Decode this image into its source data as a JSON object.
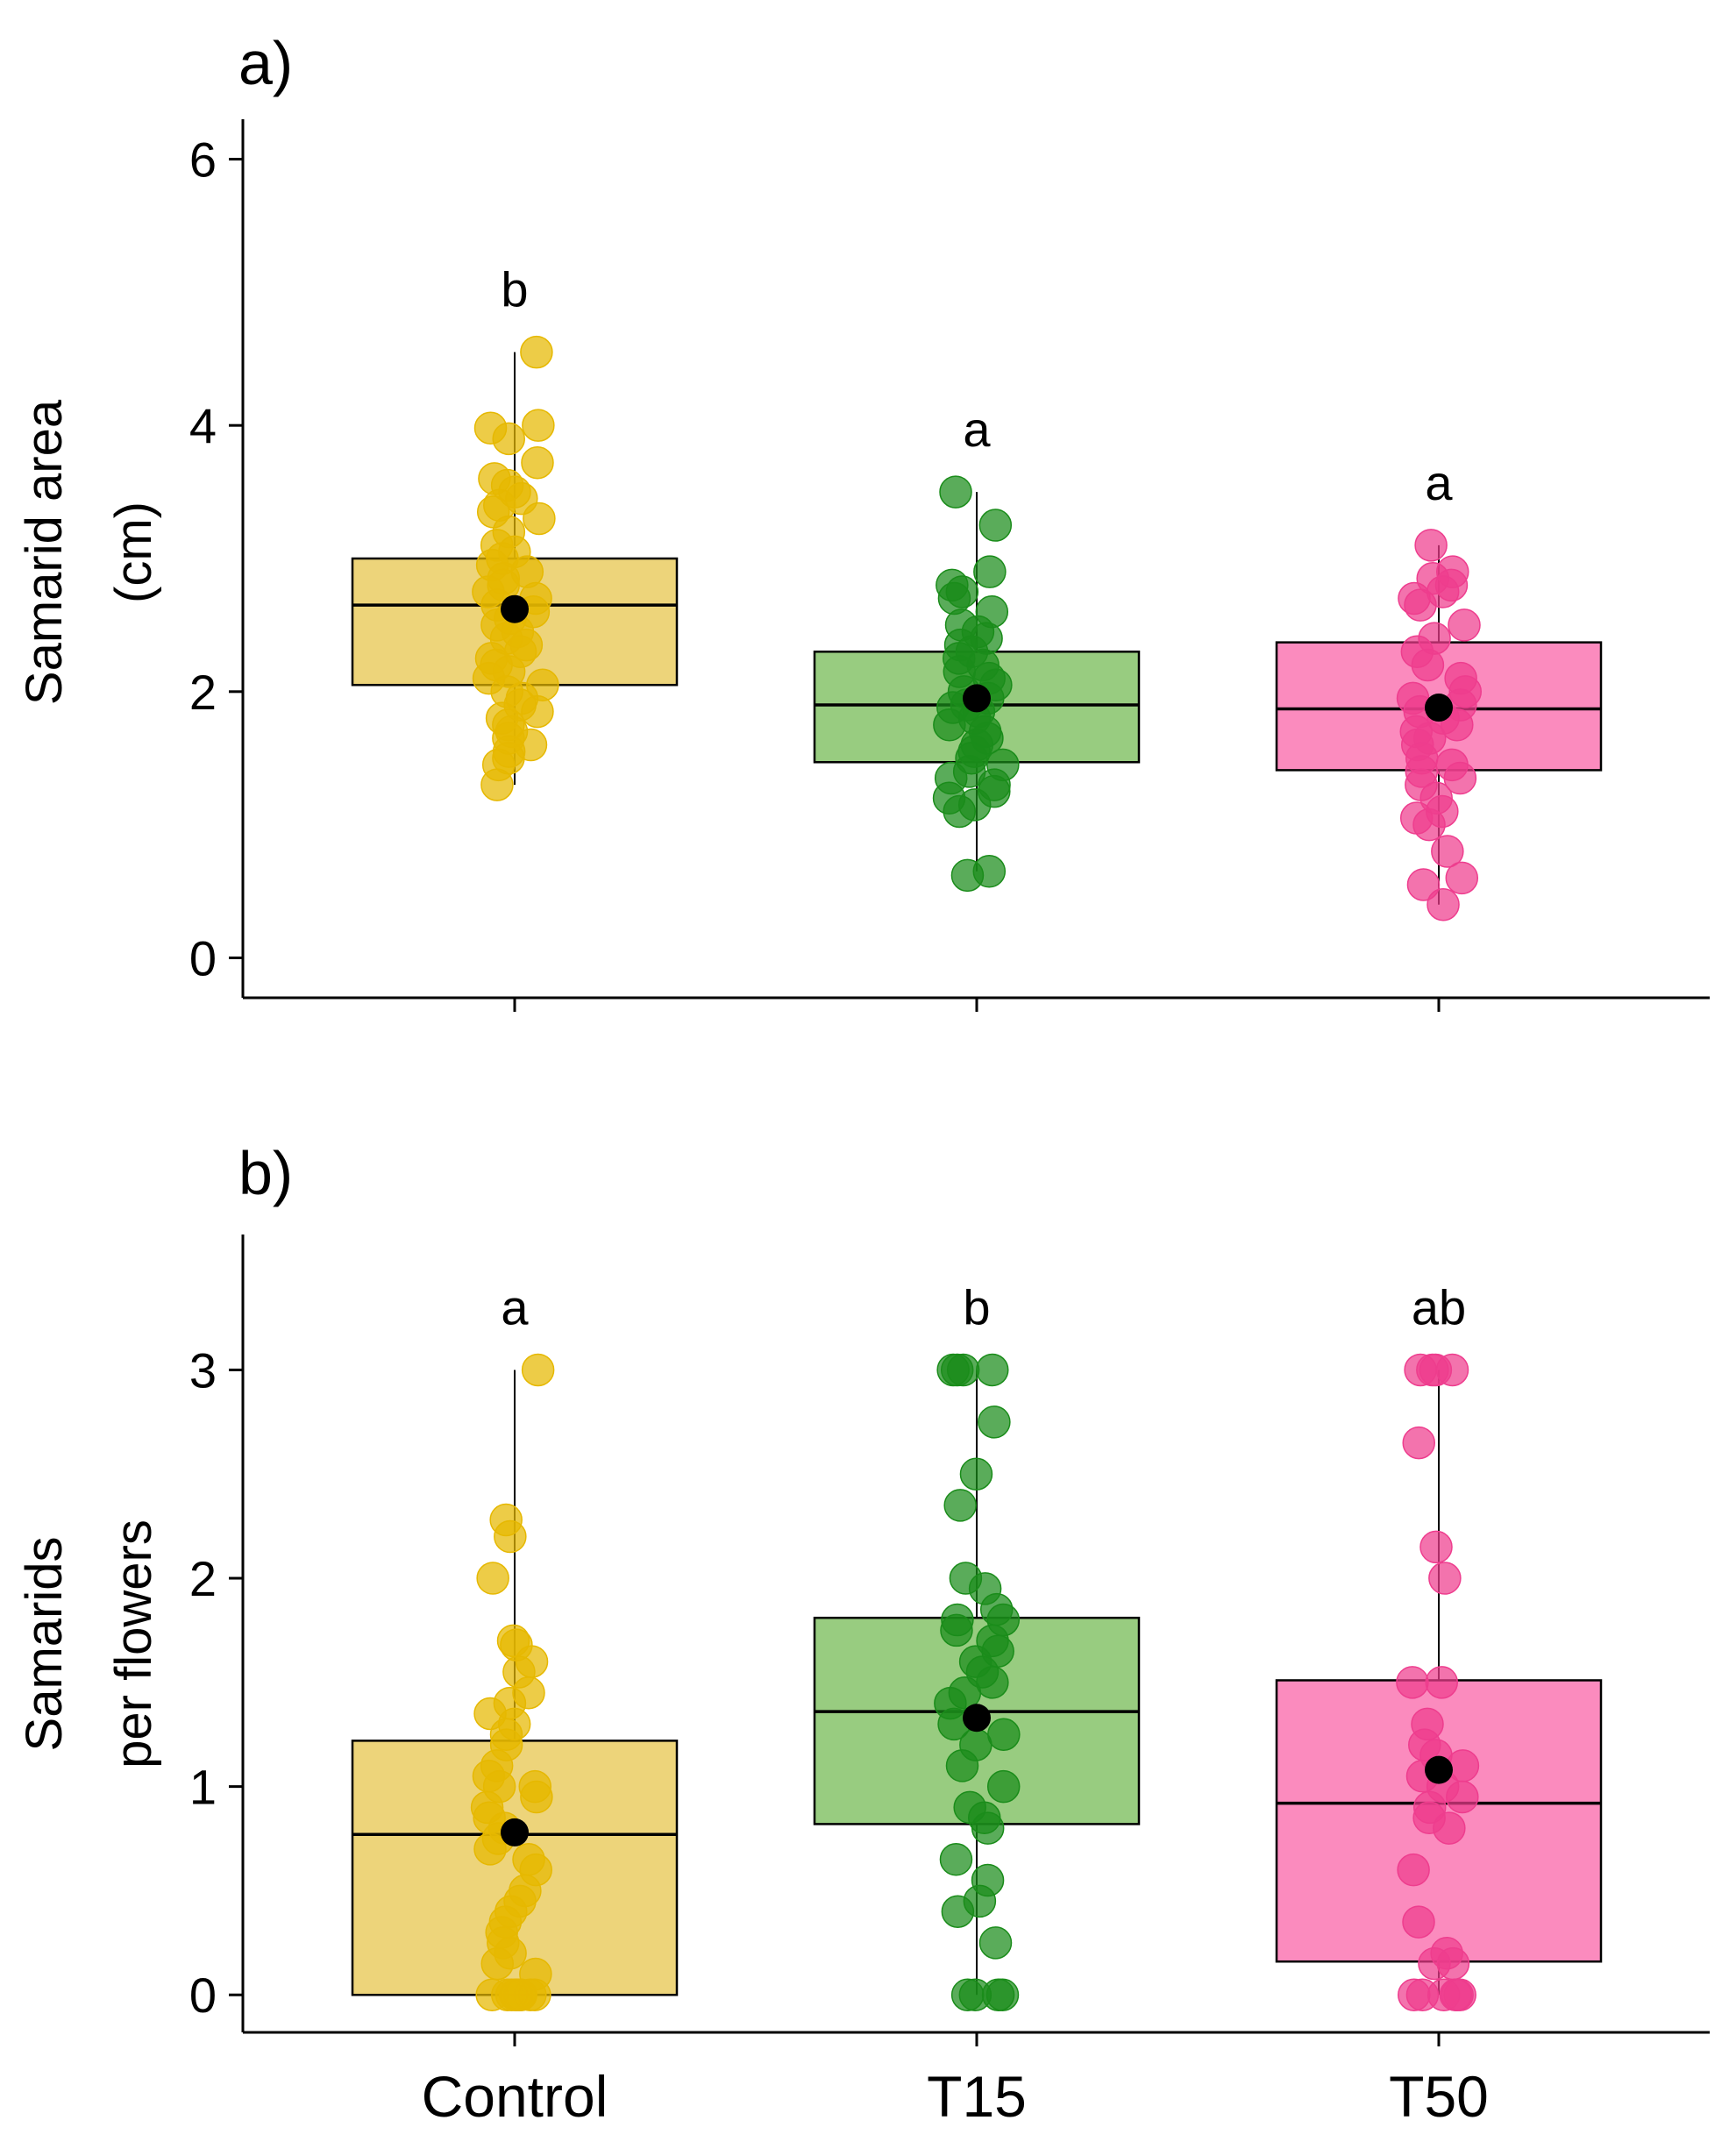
{
  "chart_data": [
    {
      "type": "box",
      "panel_label": "a)",
      "ylabel_lines": [
        "Samarid area",
        "(cm)"
      ],
      "categories": [
        "Control",
        "T15",
        "T50"
      ],
      "yticks": [
        "0",
        "2",
        "4",
        "6"
      ],
      "ylim": [
        -0.3,
        6.3
      ],
      "show_xticklabels": false,
      "groups": [
        {
          "name": "Control",
          "color": "#E6B800",
          "fill": "#EDD47A",
          "q1": 2.05,
          "median": 2.65,
          "q3": 3.0,
          "whisker_low": 1.3,
          "whisker_high": 4.55,
          "mean": 2.62,
          "letter": "b",
          "points": [
            4.55,
            4.0,
            3.98,
            3.9,
            3.72,
            3.6,
            3.55,
            3.5,
            3.45,
            3.4,
            3.35,
            3.3,
            3.2,
            3.1,
            3.05,
            3.0,
            2.95,
            2.9,
            2.85,
            2.8,
            2.75,
            2.7,
            2.65,
            2.6,
            2.55,
            2.5,
            2.45,
            2.4,
            2.35,
            2.3,
            2.25,
            2.2,
            2.15,
            2.1,
            2.05,
            2.0,
            1.95,
            1.9,
            1.85,
            1.8,
            1.75,
            1.7,
            1.65,
            1.6,
            1.55,
            1.5,
            1.45,
            1.3
          ]
        },
        {
          "name": "T15",
          "color": "#1A8C1A",
          "fill": "#98CC80",
          "q1": 1.47,
          "median": 1.9,
          "q3": 2.3,
          "whisker_low": 0.65,
          "whisker_high": 3.5,
          "mean": 1.95,
          "letter": "a",
          "points": [
            3.5,
            3.25,
            2.9,
            2.8,
            2.75,
            2.7,
            2.6,
            2.5,
            2.45,
            2.4,
            2.35,
            2.3,
            2.25,
            2.2,
            2.15,
            2.1,
            2.05,
            2.0,
            1.95,
            1.9,
            1.88,
            1.85,
            1.8,
            1.75,
            1.7,
            1.65,
            1.6,
            1.55,
            1.5,
            1.45,
            1.4,
            1.35,
            1.3,
            1.25,
            1.2,
            1.15,
            1.1,
            0.65,
            0.62
          ]
        },
        {
          "name": "T50",
          "color": "#EE3D8E",
          "fill": "#FB8BBE",
          "q1": 1.41,
          "median": 1.87,
          "q3": 2.37,
          "whisker_low": 0.4,
          "whisker_high": 3.1,
          "mean": 1.88,
          "letter": "a",
          "points": [
            3.1,
            2.9,
            2.85,
            2.8,
            2.75,
            2.7,
            2.65,
            2.5,
            2.4,
            2.3,
            2.2,
            2.1,
            2.0,
            1.95,
            1.9,
            1.85,
            1.8,
            1.75,
            1.7,
            1.65,
            1.6,
            1.5,
            1.45,
            1.4,
            1.35,
            1.3,
            1.2,
            1.1,
            1.05,
            1.0,
            0.8,
            0.6,
            0.55,
            0.4
          ]
        }
      ]
    },
    {
      "type": "box",
      "panel_label": "b)",
      "ylabel_lines": [
        "Samarids",
        "per flowers"
      ],
      "categories": [
        "Control",
        "T15",
        "T50"
      ],
      "yticks": [
        "0",
        "1",
        "2",
        "3"
      ],
      "ylim": [
        -0.18,
        3.65
      ],
      "show_xticklabels": true,
      "groups": [
        {
          "name": "Control",
          "color": "#E6B800",
          "fill": "#EDD47A",
          "q1": 0.0,
          "median": 0.77,
          "q3": 1.22,
          "whisker_low": 0.0,
          "whisker_high": 3.0,
          "mean": 0.78,
          "letter": "a",
          "points": [
            3.0,
            2.28,
            2.2,
            2.0,
            1.7,
            1.68,
            1.6,
            1.55,
            1.45,
            1.4,
            1.35,
            1.3,
            1.25,
            1.2,
            1.1,
            1.05,
            1.0,
            1.0,
            0.95,
            0.9,
            0.85,
            0.8,
            0.75,
            0.7,
            0.65,
            0.6,
            0.5,
            0.45,
            0.4,
            0.35,
            0.3,
            0.25,
            0.2,
            0.15,
            0.1,
            0.0,
            0.0,
            0.0,
            0.0,
            0.0,
            0.0,
            0.0,
            0.0,
            0.0,
            0.0
          ]
        },
        {
          "name": "T15",
          "color": "#1A8C1A",
          "fill": "#98CC80",
          "q1": 0.82,
          "median": 1.36,
          "q3": 1.81,
          "whisker_low": 0.0,
          "whisker_high": 3.0,
          "mean": 1.33,
          "letter": "b",
          "points": [
            3.0,
            3.0,
            3.0,
            3.0,
            2.75,
            2.5,
            2.35,
            2.0,
            1.95,
            1.85,
            1.8,
            1.8,
            1.75,
            1.7,
            1.65,
            1.6,
            1.55,
            1.5,
            1.45,
            1.4,
            1.3,
            1.25,
            1.2,
            1.1,
            1.0,
            0.9,
            0.85,
            0.8,
            0.65,
            0.55,
            0.45,
            0.4,
            0.25,
            0.0,
            0.0,
            0.0,
            0.0
          ]
        },
        {
          "name": "T50",
          "color": "#EE3D8E",
          "fill": "#FB8BBE",
          "q1": 0.16,
          "median": 0.92,
          "q3": 1.51,
          "whisker_low": 0.0,
          "whisker_high": 3.0,
          "mean": 1.08,
          "letter": "ab",
          "points": [
            3.0,
            3.0,
            3.0,
            3.0,
            2.65,
            2.15,
            2.0,
            1.5,
            1.5,
            1.3,
            1.2,
            1.15,
            1.1,
            1.05,
            1.0,
            0.95,
            0.9,
            0.85,
            0.8,
            0.6,
            0.35,
            0.2,
            0.15,
            0.15,
            0.0,
            0.0,
            0.0,
            0.0,
            0.0,
            0.0
          ]
        }
      ]
    }
  ]
}
